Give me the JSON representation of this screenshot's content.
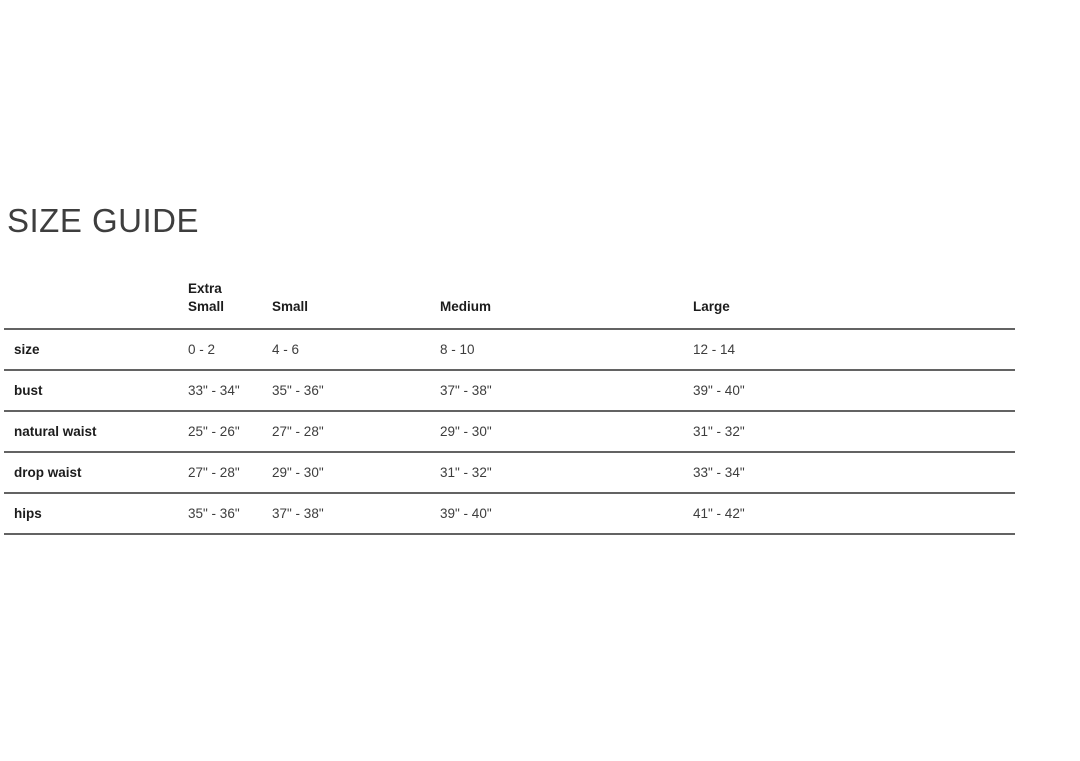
{
  "page": {
    "title": "SIZE GUIDE"
  },
  "colors": {
    "background": "#ffffff",
    "title_text": "#3e3e3e",
    "label_text": "#1c1c1c",
    "value_text": "#3d3d3d",
    "divider": "#636363"
  },
  "table": {
    "columns": [
      {
        "label": "Extra\nSmall"
      },
      {
        "label": "Small"
      },
      {
        "label": "Medium"
      },
      {
        "label": "Large"
      }
    ],
    "rows": [
      {
        "label": "size",
        "values": [
          "0 - 2",
          "4 - 6",
          "8 - 10",
          "12 - 14"
        ]
      },
      {
        "label": "bust",
        "values": [
          "33\" - 34\"",
          "35\" - 36\"",
          "37\" - 38\"",
          "39\" - 40\""
        ]
      },
      {
        "label": "natural waist",
        "values": [
          "25\" - 26\"",
          "27\" - 28\"",
          "29\" - 30\"",
          "31\" - 32\""
        ]
      },
      {
        "label": "drop waist",
        "values": [
          "27\" - 28\"",
          "29\" - 30\"",
          "31\" - 32\"",
          "33\" - 34\""
        ]
      },
      {
        "label": "hips",
        "values": [
          "35\" - 36\"",
          "37\" - 38\"",
          "39\" - 40\"",
          "41\" - 42\""
        ]
      }
    ]
  }
}
